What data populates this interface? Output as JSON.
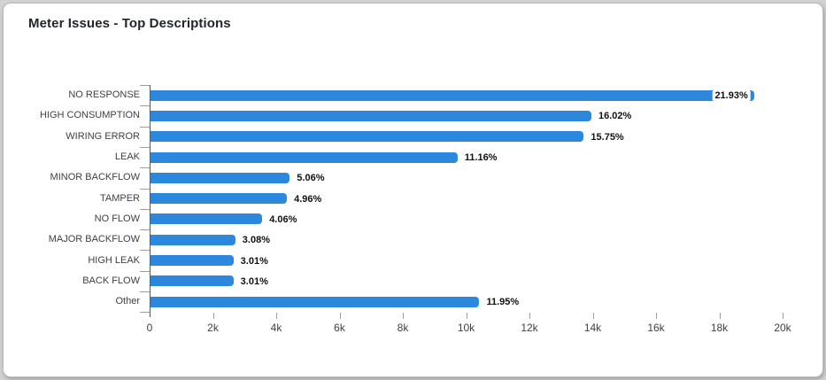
{
  "card": {
    "title": "Meter Issues - Top Descriptions",
    "background": "#ffffff"
  },
  "chart_data": {
    "type": "bar",
    "orientation": "horizontal",
    "title": "Meter Issues - Top Descriptions",
    "categories": [
      "NO RESPONSE",
      "HIGH CONSUMPTION",
      "WIRING ERROR",
      "LEAK",
      "MINOR BACKFLOW",
      "TAMPER",
      "NO FLOW",
      "MAJOR BACKFLOW",
      "HIGH LEAK",
      "BACK FLOW",
      "Other"
    ],
    "values": [
      19070,
      13930,
      13690,
      9700,
      4400,
      4310,
      3530,
      2680,
      2620,
      2620,
      10390
    ],
    "bar_labels": [
      "21.93%",
      "16.02%",
      "15.75%",
      "11.16%",
      "5.06%",
      "4.96%",
      "4.06%",
      "3.08%",
      "3.01%",
      "3.01%",
      "11.95%"
    ],
    "xlabel": "",
    "ylabel": "",
    "xlim": [
      0,
      20000
    ],
    "x_ticks": [
      {
        "value": 0,
        "label": "0"
      },
      {
        "value": 2000,
        "label": "2k"
      },
      {
        "value": 4000,
        "label": "4k"
      },
      {
        "value": 6000,
        "label": "6k"
      },
      {
        "value": 8000,
        "label": "8k"
      },
      {
        "value": 10000,
        "label": "10k"
      },
      {
        "value": 12000,
        "label": "12k"
      },
      {
        "value": 14000,
        "label": "14k"
      },
      {
        "value": 16000,
        "label": "16k"
      },
      {
        "value": 18000,
        "label": "18k"
      },
      {
        "value": 20000,
        "label": "20k"
      }
    ],
    "grid": false,
    "legend": "none",
    "bar_color": "#2c87dd",
    "annotation_color": "#111111",
    "category_color": "#3f3f3f",
    "tick_color": "#3f3f3f"
  }
}
